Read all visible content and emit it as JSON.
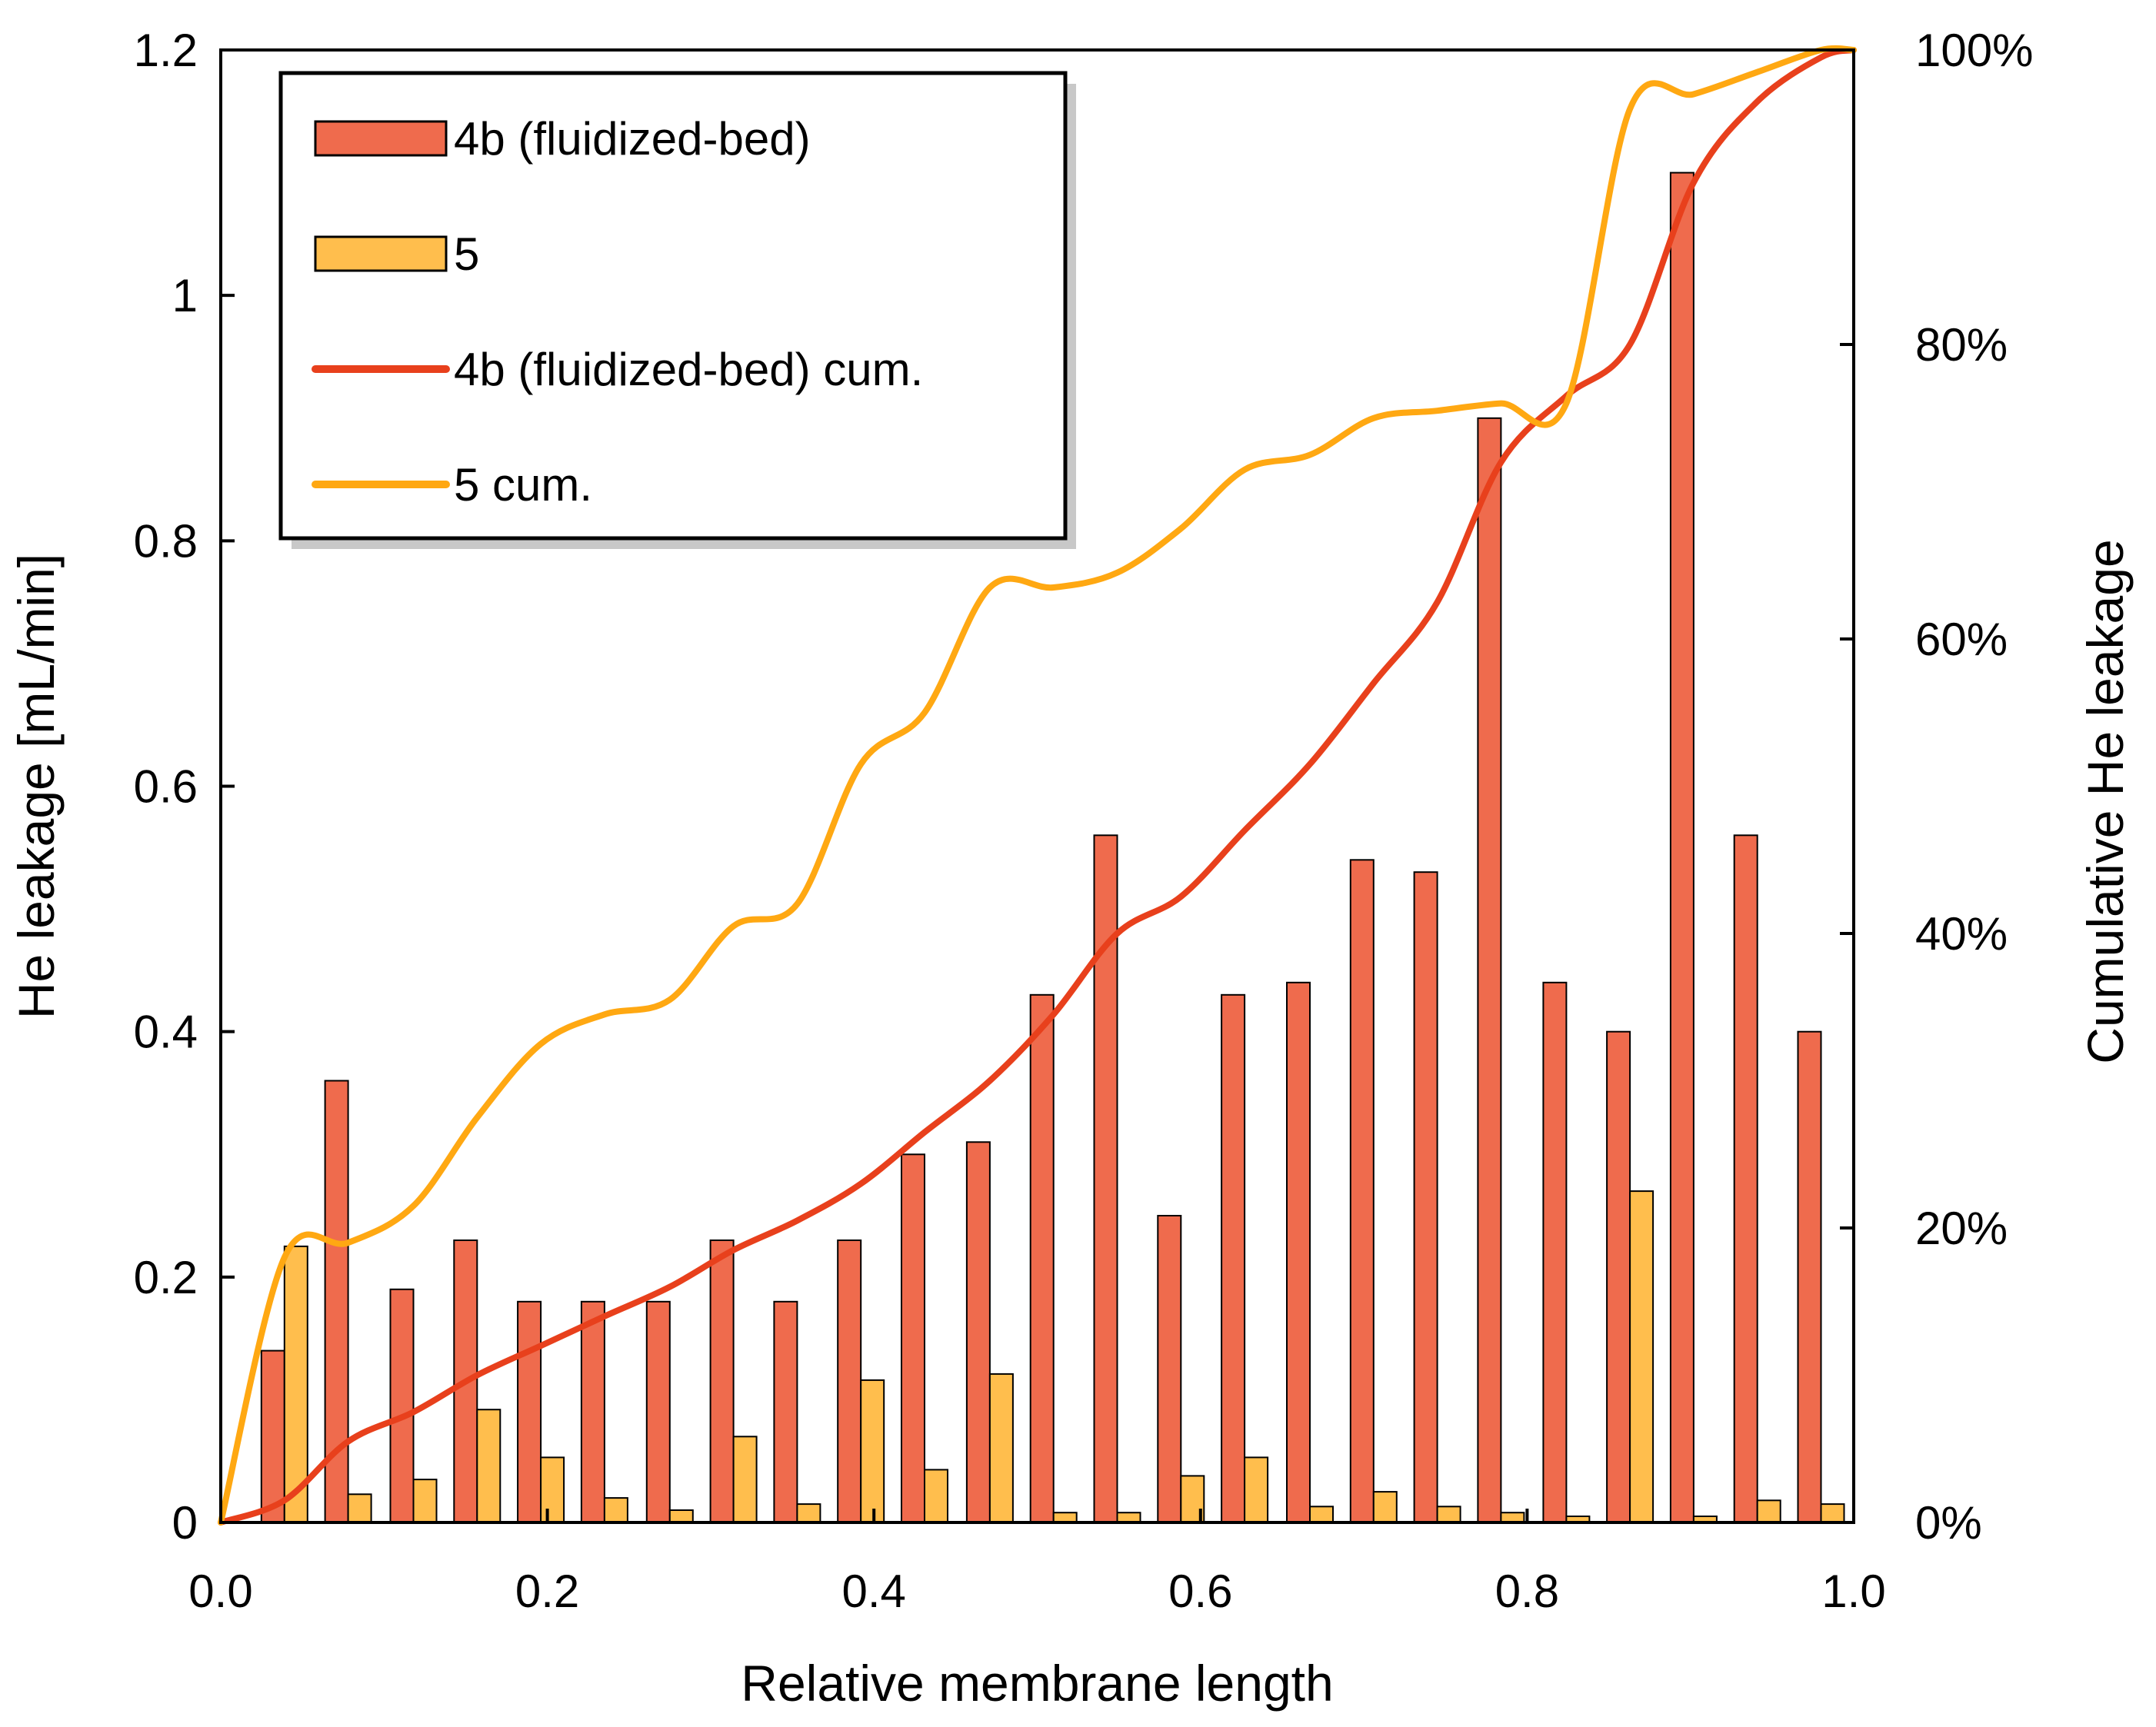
{
  "chart_data": {
    "type": "bar",
    "title": "",
    "xlabel": "Relative membrane length",
    "ylabel": "He leakage [mL/min]",
    "y2label": "Cumulative He leakage",
    "xlim": [
      0.0,
      1.0
    ],
    "ylim": [
      0,
      1.2
    ],
    "y2lim": [
      0,
      100
    ],
    "grid": false,
    "legend_position": "top-left",
    "x_ticks": [
      0.0,
      0.2,
      0.4,
      0.6,
      0.8,
      1.0
    ],
    "x_tick_labels": [
      "0.0",
      "0.2",
      "0.4",
      "0.6",
      "0.8",
      "1.0"
    ],
    "y_ticks": [
      0,
      0.2,
      0.4,
      0.6,
      0.8,
      1,
      1.2
    ],
    "y_tick_labels": [
      "0",
      "0.2",
      "0.4",
      "0.6",
      "0.8",
      "1",
      "1.2"
    ],
    "y2_ticks": [
      0,
      20,
      40,
      60,
      80,
      100
    ],
    "y2_tick_labels": [
      "0%",
      "20%",
      "40%",
      "60%",
      "80%",
      "100%"
    ],
    "bar_positions": [
      0.039,
      0.078,
      0.118,
      0.157,
      0.196,
      0.235,
      0.275,
      0.314,
      0.353,
      0.392,
      0.431,
      0.471,
      0.51,
      0.549,
      0.588,
      0.627,
      0.667,
      0.706,
      0.745,
      0.784,
      0.824,
      0.863,
      0.902,
      0.941,
      0.98
    ],
    "series": [
      {
        "name": "4b (fluidized-bed)",
        "kind": "bar",
        "axis": "left",
        "color": "#EF6B4D",
        "values": [
          0.14,
          0.36,
          0.19,
          0.23,
          0.18,
          0.18,
          0.18,
          0.23,
          0.18,
          0.23,
          0.3,
          0.31,
          0.43,
          0.56,
          0.25,
          0.43,
          0.44,
          0.54,
          0.53,
          0.9,
          0.44,
          0.4,
          1.1,
          0.56,
          0.4
        ]
      },
      {
        "name": "5",
        "kind": "bar",
        "axis": "left",
        "color": "#FFBE4D",
        "values": [
          0.225,
          0.023,
          0.035,
          0.092,
          0.053,
          0.02,
          0.01,
          0.07,
          0.015,
          0.116,
          0.043,
          0.121,
          0.008,
          0.008,
          0.038,
          0.053,
          0.013,
          0.025,
          0.013,
          0.008,
          0.005,
          0.27,
          0.005,
          0.018,
          0.015
        ]
      },
      {
        "name": "4b (fluidized-bed) cum.",
        "kind": "line",
        "axis": "right",
        "color": "#E8401C",
        "x": [
          0.0,
          0.039,
          0.078,
          0.118,
          0.157,
          0.196,
          0.235,
          0.275,
          0.314,
          0.353,
          0.392,
          0.431,
          0.471,
          0.51,
          0.549,
          0.588,
          0.627,
          0.667,
          0.706,
          0.745,
          0.784,
          0.824,
          0.863,
          0.902,
          0.941,
          0.98,
          1.0
        ],
        "values": [
          0,
          1.5,
          5.5,
          7.5,
          10.0,
          12.0,
          14.0,
          16.0,
          18.5,
          20.5,
          23.0,
          26.5,
          30.0,
          34.5,
          40.0,
          42.5,
          47.0,
          51.5,
          57.0,
          62.5,
          72.0,
          76.5,
          80.0,
          91.0,
          96.5,
          99.5,
          100
        ]
      },
      {
        "name": "5 cum.",
        "kind": "line",
        "axis": "right",
        "color": "#FFA812",
        "x": [
          0.0,
          0.039,
          0.078,
          0.118,
          0.157,
          0.196,
          0.235,
          0.275,
          0.314,
          0.353,
          0.392,
          0.431,
          0.471,
          0.51,
          0.549,
          0.588,
          0.627,
          0.667,
          0.706,
          0.745,
          0.784,
          0.824,
          0.863,
          0.902,
          0.941,
          0.98,
          1.0
        ],
        "values": [
          0,
          18.0,
          19.0,
          21.5,
          27.5,
          32.5,
          34.5,
          35.5,
          40.5,
          42.0,
          51.5,
          55.0,
          63.5,
          63.5,
          64.5,
          67.5,
          71.5,
          72.5,
          75.0,
          75.5,
          76.0,
          76.0,
          96.0,
          97.0,
          98.5,
          100.0,
          100
        ]
      }
    ]
  }
}
